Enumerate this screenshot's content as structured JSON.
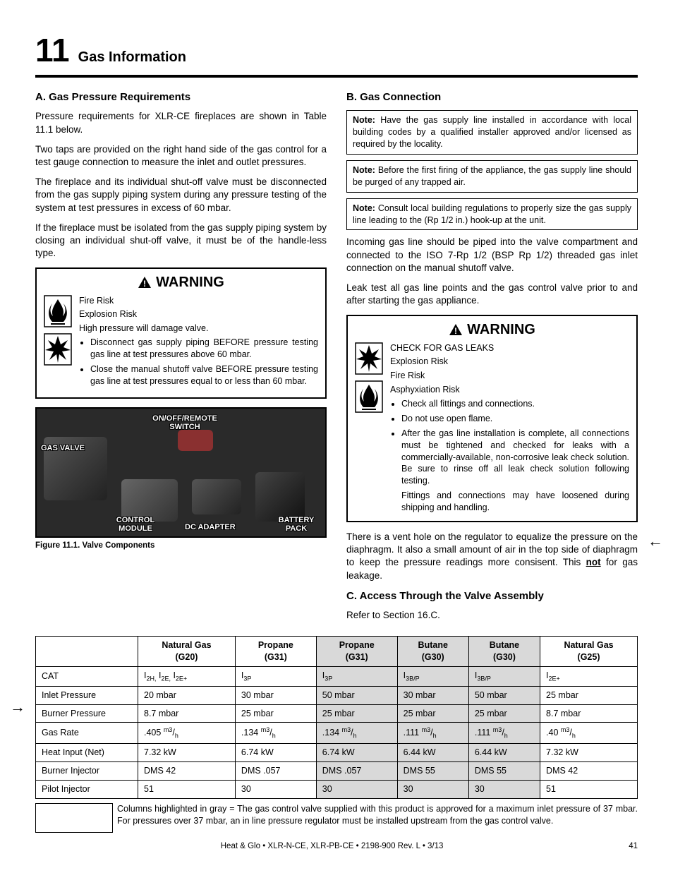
{
  "chapter": {
    "num": "11",
    "title": "Gas Information"
  },
  "sectionA": {
    "head": "A.  Gas Pressure Requirements",
    "p1": "Pressure requirements for XLR-CE fireplaces are shown in Table 11.1 below.",
    "p2": "Two taps are provided on the right hand side of the gas control for a test gauge connection to measure the inlet and outlet pressures.",
    "p3": "The fireplace and its individual shut-off valve must be disconnected from the gas supply piping system during any pressure testing of the system at test pressures in excess of 60 mbar.",
    "p4": "If the fireplace must be isolated from the gas supply piping system by closing an individual shut-off valve, it must be of the handle-less type."
  },
  "warnA": {
    "title": "WARNING",
    "r1": "Fire Risk",
    "r2": "Explosion Risk",
    "r3": "High pressure will damage valve.",
    "li1": "Disconnect gas supply piping BEFORE pressure testing gas line at test pressures above 60 mbar.",
    "li2": "Close the manual shutoff valve BEFORE pressure testing gas line at test pressures equal to or less than 60 mbar."
  },
  "figure": {
    "l1": "GAS VALVE",
    "l2": "ON/OFF/REMOTE SWITCH",
    "l3": "CONTROL MODULE",
    "l4": "DC ADAPTER",
    "l5": "BATTERY PACK",
    "caption": "Figure 11.1.  Valve Components"
  },
  "sectionB": {
    "head": "B.  Gas Connection",
    "n1b": "Note:",
    "n1": " Have the gas supply line installed in accordance with local building codes by a qualified installer approved and/or licensed as required by the locality.",
    "n2b": "Note:",
    "n2": " Before the first firing of the appliance, the gas supply line should be purged of any trapped air.",
    "n3b": "Note:",
    "n3": " Consult local building regulations to properly size the gas supply line leading to the (Rp 1/2 in.) hook-up at the unit.",
    "p1": "Incoming gas line should be piped into the valve compartment and connected to the ISO 7-Rp 1/2 (BSP Rp 1/2) threaded gas inlet connection on the manual shutoff valve.",
    "p2": "Leak test all gas line points and the gas control valve prior to and after starting the gas appliance."
  },
  "warnB": {
    "title": "WARNING",
    "r0": "CHECK FOR GAS LEAKS",
    "r1": "Explosion Risk",
    "r2": "Fire Risk",
    "r3": "Asphyxiation Risk",
    "li1": "Check all fittings and connections.",
    "li2": "Do not use open flame.",
    "li3": "After the gas line installation is complete, all connections must be tightened and checked for leaks with a commercially-available, non-corrosive leak check solution. Be sure to rinse off all leak check solution following testing.",
    "tail": "Fittings and connections may have loosened during shipping and handling."
  },
  "sectionB2": {
    "p1a": "There is a vent hole on the regulator to equalize the pressure on the diaphragm. It also a small amount of air in the top side of diaphragm to keep the pressure readings more consisent.  This ",
    "p1u": "not",
    "p1b": " for gas leakage."
  },
  "sectionC": {
    "head": "C.  Access Through the Valve Assembly",
    "p1": "Refer to Section 16.C."
  },
  "table": {
    "headers": [
      "",
      "Natural Gas (G20)",
      "Propane (G31)",
      "Propane (G31)",
      "Butane (G30)",
      "Butane (G30)",
      "Natural Gas (G25)"
    ],
    "gray_cols": [
      3,
      4,
      5
    ],
    "rows": [
      {
        "label": "CAT",
        "cells": [
          "I|2H,| I|2E,| I|2E+|",
          "I|3P|",
          "I|3P|",
          "I|3B/P|",
          "I|3B/P|",
          "I|2E+|"
        ],
        "subscript": true
      },
      {
        "label": "Inlet Pressure",
        "cells": [
          "20 mbar",
          "30 mbar",
          "50 mbar",
          "30 mbar",
          "50 mbar",
          "25 mbar"
        ]
      },
      {
        "label": "Burner Pressure",
        "cells": [
          "8.7 mbar",
          "25 mbar",
          "25 mbar",
          "25 mbar",
          "25 mbar",
          "8.7 mbar"
        ]
      },
      {
        "label": "Gas Rate",
        "cells": [
          ".405 |m3|/|h|",
          ".134 |m3|/|h|",
          ".134 |m3|/|h|",
          ".111 |m3|/|h|",
          ".111 |m3|/|h|",
          ".40 |m3|/|h|"
        ],
        "rate": true
      },
      {
        "label": "Heat Input (Net)",
        "cells": [
          "7.32 kW",
          "6.74 kW",
          "6.74 kW",
          "6.44 kW",
          "6.44 kW",
          "7.32 kW"
        ]
      },
      {
        "label": "Burner Injector",
        "cells": [
          "DMS 42",
          "DMS .057",
          "DMS .057",
          "DMS 55",
          "DMS 55",
          "DMS 42"
        ]
      },
      {
        "label": "Pilot Injector",
        "cells": [
          "51",
          "30",
          "30",
          "30",
          "30",
          "51"
        ]
      }
    ],
    "note": "Columns highlighted in gray = The gas control valve supplied with this product is approved for a maximum inlet pressure of 37 mbar.  For pressures over 37 mbar, an in line pressure regulator must be installed upstream from the gas control valve."
  },
  "footer": {
    "center": "Heat & Glo  •  XLR-N-CE, XLR-PB-CE  •  2198-900 Rev. L  •  3/13",
    "page": "41"
  }
}
